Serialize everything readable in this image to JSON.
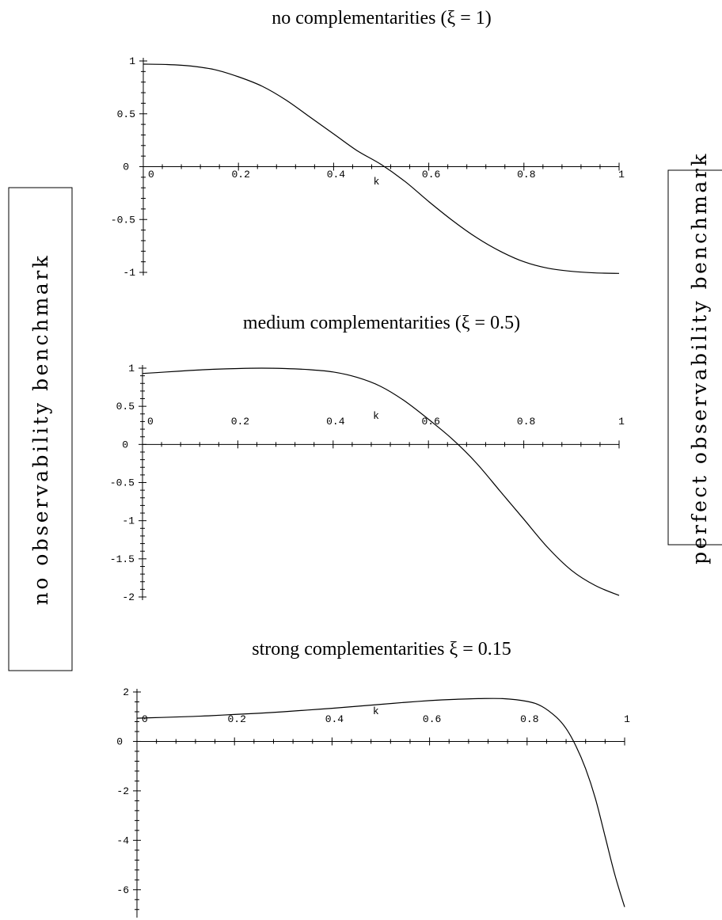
{
  "side_labels": {
    "left": "no observability benchmark",
    "right": "perfect observability benchmark"
  },
  "chart_data": [
    {
      "type": "line",
      "title": "no complementarities (ξ = 1)",
      "xlabel": "k",
      "ylabel": "",
      "xlim": [
        0,
        1
      ],
      "ylim": [
        -1,
        1
      ],
      "xticks": [
        "0",
        "0.2",
        "0.4",
        "0.6",
        "0.8",
        "1"
      ],
      "yticks": [
        {
          "v": 1,
          "label": "1"
        },
        {
          "v": 0.5,
          "label": "0.5"
        },
        {
          "v": 0,
          "label": "0"
        },
        {
          "v": -0.5,
          "label": "-0.5"
        },
        {
          "v": -1,
          "label": "-1"
        }
      ],
      "series": [
        {
          "x": [
            0,
            0.05,
            0.1,
            0.15,
            0.2,
            0.25,
            0.3,
            0.35,
            0.4,
            0.45,
            0.5,
            0.55,
            0.6,
            0.65,
            0.7,
            0.75,
            0.8,
            0.85,
            0.9,
            0.95,
            1
          ],
          "values": [
            0.97,
            0.966,
            0.952,
            0.918,
            0.85,
            0.76,
            0.63,
            0.47,
            0.31,
            0.15,
            0.02,
            -0.14,
            -0.33,
            -0.51,
            -0.67,
            -0.8,
            -0.9,
            -0.96,
            -0.99,
            -1.005,
            -1.01
          ]
        }
      ]
    },
    {
      "type": "line",
      "title": "medium complementarities (ξ = 0.5)",
      "xlabel": "k",
      "ylabel": "",
      "xlim": [
        0,
        1
      ],
      "ylim": [
        -2,
        1
      ],
      "xticks": [
        "0",
        "0.2",
        "0.4",
        "0.6",
        "0.8",
        "1"
      ],
      "yticks": [
        {
          "v": 1,
          "label": "1"
        },
        {
          "v": 0.5,
          "label": "0.5"
        },
        {
          "v": 0,
          "label": "0"
        },
        {
          "v": -0.5,
          "label": "-0.5"
        },
        {
          "v": -1,
          "label": "-1"
        },
        {
          "v": -1.5,
          "label": "-1.5"
        },
        {
          "v": -2,
          "label": "-2"
        }
      ],
      "series": [
        {
          "x": [
            0,
            0.05,
            0.1,
            0.15,
            0.2,
            0.25,
            0.3,
            0.35,
            0.4,
            0.45,
            0.5,
            0.55,
            0.6,
            0.65,
            0.7,
            0.75,
            0.8,
            0.85,
            0.9,
            0.95,
            1
          ],
          "values": [
            0.93,
            0.95,
            0.97,
            0.985,
            0.995,
            1.0,
            0.995,
            0.98,
            0.95,
            0.88,
            0.76,
            0.57,
            0.33,
            0.07,
            -0.24,
            -0.61,
            -0.98,
            -1.35,
            -1.65,
            -1.85,
            -1.98
          ]
        }
      ]
    },
    {
      "type": "line",
      "title": "strong complementarities ξ = 0.15",
      "xlabel": "k",
      "ylabel": "",
      "xlim": [
        0,
        1
      ],
      "ylim": [
        -7,
        2
      ],
      "xticks": [
        "0",
        "0.2",
        "0.4",
        "0.6",
        "0.8",
        "1"
      ],
      "yticks": [
        {
          "v": 2,
          "label": "2"
        },
        {
          "v": 0,
          "label": "0"
        },
        {
          "v": -2,
          "label": "-2"
        },
        {
          "v": -4,
          "label": "-4"
        },
        {
          "v": -6,
          "label": "-6"
        }
      ],
      "series": [
        {
          "x": [
            0,
            0.05,
            0.1,
            0.15,
            0.2,
            0.25,
            0.3,
            0.35,
            0.4,
            0.45,
            0.5,
            0.55,
            0.6,
            0.65,
            0.7,
            0.75,
            0.8,
            0.83,
            0.86,
            0.88,
            0.9,
            0.92,
            0.94,
            0.96,
            0.98,
            1
          ],
          "values": [
            0.94,
            0.97,
            1.0,
            1.04,
            1.09,
            1.14,
            1.2,
            1.27,
            1.34,
            1.42,
            1.5,
            1.58,
            1.65,
            1.7,
            1.73,
            1.73,
            1.62,
            1.42,
            0.98,
            0.52,
            -0.18,
            -1.1,
            -2.3,
            -3.85,
            -5.4,
            -6.7
          ]
        }
      ]
    }
  ]
}
